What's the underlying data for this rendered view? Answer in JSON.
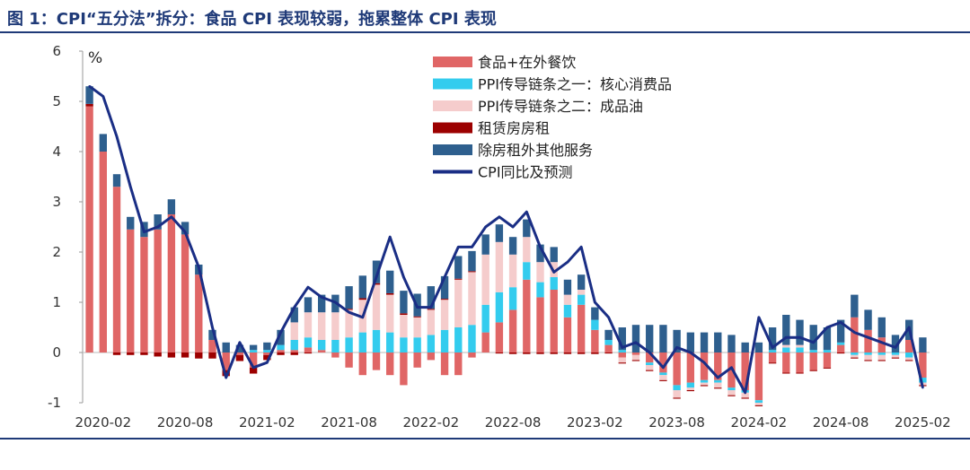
{
  "figure": {
    "title": "图 1：CPI“五分法”拆分：食品 CPI 表现较弱，拖累整体 CPI 表现"
  },
  "chart_data": {
    "type": "bar",
    "stacked": true,
    "ylabel": "%",
    "ylim": [
      -1,
      6
    ],
    "yticks": [
      -1,
      0,
      1,
      2,
      3,
      4,
      5,
      6
    ],
    "xtick_labels": [
      "2020-02",
      "2020-08",
      "2021-02",
      "2021-08",
      "2022-02",
      "2022-08",
      "2023-02",
      "2023-08",
      "2024-02",
      "2024-08",
      "2025-02"
    ],
    "categories": [
      "2020-01",
      "2020-02",
      "2020-03",
      "2020-04",
      "2020-05",
      "2020-06",
      "2020-07",
      "2020-08",
      "2020-09",
      "2020-10",
      "2020-11",
      "2020-12",
      "2021-01",
      "2021-02",
      "2021-03",
      "2021-04",
      "2021-05",
      "2021-06",
      "2021-07",
      "2021-08",
      "2021-09",
      "2021-10",
      "2021-11",
      "2021-12",
      "2022-01",
      "2022-02",
      "2022-03",
      "2022-04",
      "2022-05",
      "2022-06",
      "2022-07",
      "2022-08",
      "2022-09",
      "2022-10",
      "2022-11",
      "2022-12",
      "2023-01",
      "2023-02",
      "2023-03",
      "2023-04",
      "2023-05",
      "2023-06",
      "2023-07",
      "2023-08",
      "2023-09",
      "2023-10",
      "2023-11",
      "2023-12",
      "2024-01",
      "2024-02",
      "2024-03",
      "2024-04",
      "2024-05",
      "2024-06",
      "2024-07",
      "2024-08",
      "2024-09",
      "2024-10",
      "2024-11",
      "2024-12",
      "2025-01",
      "2025-02"
    ],
    "legend_position": "top-right",
    "series": [
      {
        "name": "食品+在外餐饮",
        "kind": "bar",
        "color": "#e06666",
        "values": [
          4.9,
          4.0,
          3.3,
          2.45,
          2.3,
          2.45,
          2.75,
          2.35,
          1.55,
          0.25,
          -0.35,
          -0.05,
          -0.3,
          -0.05,
          0.05,
          0.05,
          0.1,
          0.05,
          -0.1,
          -0.3,
          -0.45,
          -0.35,
          -0.45,
          -0.65,
          -0.3,
          -0.15,
          -0.45,
          -0.45,
          -0.1,
          0.4,
          0.6,
          0.85,
          1.45,
          1.1,
          1.25,
          0.7,
          0.95,
          0.45,
          0.15,
          -0.1,
          -0.05,
          -0.2,
          -0.4,
          -0.65,
          -0.6,
          -0.55,
          -0.55,
          -0.7,
          -0.75,
          -0.95,
          -0.2,
          -0.4,
          -0.4,
          -0.35,
          -0.3,
          0.15,
          0.7,
          0.45,
          0.3,
          0.0,
          0.25,
          -0.5
        ]
      },
      {
        "name": "PPI传导链条之一：核心消费品",
        "kind": "bar",
        "color": "#33ccee",
        "values": [
          0.0,
          0.0,
          0.0,
          0.0,
          0.0,
          0.0,
          0.0,
          0.0,
          0.0,
          0.0,
          0.0,
          0.0,
          0.05,
          0.05,
          0.1,
          0.2,
          0.2,
          0.2,
          0.25,
          0.3,
          0.4,
          0.45,
          0.4,
          0.3,
          0.3,
          0.35,
          0.45,
          0.5,
          0.55,
          0.55,
          0.6,
          0.45,
          0.35,
          0.3,
          0.25,
          0.25,
          0.2,
          0.2,
          0.1,
          0.05,
          0.0,
          -0.05,
          -0.05,
          -0.1,
          -0.1,
          -0.05,
          -0.05,
          -0.05,
          -0.05,
          -0.05,
          0.05,
          0.1,
          0.1,
          0.05,
          0.05,
          0.05,
          -0.05,
          -0.05,
          -0.05,
          -0.05,
          -0.1,
          -0.1
        ]
      },
      {
        "name": "PPI传导链条之二：成品油",
        "kind": "bar",
        "color": "#f5cccc",
        "values": [
          0.0,
          0.0,
          0.0,
          0.0,
          0.0,
          0.0,
          0.0,
          0.0,
          0.0,
          0.0,
          0.0,
          0.0,
          0.0,
          0.0,
          0.0,
          0.35,
          0.5,
          0.55,
          0.55,
          0.55,
          0.65,
          0.9,
          0.75,
          0.45,
          0.4,
          0.5,
          0.6,
          0.95,
          1.05,
          1.0,
          1.0,
          0.65,
          0.5,
          0.4,
          0.3,
          0.2,
          0.1,
          0.0,
          0.0,
          -0.1,
          -0.1,
          -0.1,
          -0.1,
          -0.15,
          -0.05,
          -0.05,
          -0.1,
          -0.1,
          -0.1,
          -0.05,
          0.0,
          0.05,
          0.05,
          0.0,
          0.0,
          0.0,
          -0.05,
          -0.1,
          -0.1,
          -0.05,
          -0.05,
          -0.05
        ]
      },
      {
        "name": "租赁房房租",
        "kind": "bar",
        "color": "#9c0000",
        "values": [
          0.05,
          0.0,
          -0.05,
          -0.05,
          -0.05,
          -0.08,
          -0.1,
          -0.1,
          -0.12,
          -0.12,
          -0.12,
          -0.12,
          -0.12,
          -0.1,
          -0.05,
          -0.05,
          -0.02,
          0.0,
          0.0,
          0.02,
          0.03,
          0.03,
          0.03,
          0.03,
          0.02,
          0.02,
          0.02,
          0.02,
          0.02,
          0.0,
          -0.02,
          -0.03,
          -0.03,
          -0.03,
          -0.03,
          -0.03,
          -0.03,
          -0.03,
          -0.02,
          -0.02,
          -0.02,
          -0.02,
          -0.02,
          -0.02,
          -0.02,
          -0.02,
          -0.02,
          -0.02,
          -0.02,
          -0.02,
          -0.02,
          -0.02,
          -0.02,
          -0.02,
          -0.02,
          -0.02,
          -0.02,
          -0.02,
          -0.02,
          -0.02,
          -0.02,
          -0.02
        ]
      },
      {
        "name": "除房租外其他服务",
        "kind": "bar",
        "color": "#2e5f8e",
        "values": [
          0.35,
          0.35,
          0.25,
          0.25,
          0.3,
          0.3,
          0.3,
          0.25,
          0.2,
          0.2,
          0.2,
          0.15,
          0.1,
          0.15,
          0.3,
          0.3,
          0.3,
          0.35,
          0.35,
          0.45,
          0.45,
          0.45,
          0.45,
          0.45,
          0.45,
          0.45,
          0.45,
          0.45,
          0.4,
          0.4,
          0.35,
          0.35,
          0.35,
          0.35,
          0.3,
          0.3,
          0.3,
          0.25,
          0.2,
          0.45,
          0.55,
          0.55,
          0.55,
          0.45,
          0.4,
          0.4,
          0.4,
          0.35,
          0.2,
          0.2,
          0.45,
          0.6,
          0.5,
          0.5,
          0.45,
          0.45,
          0.45,
          0.4,
          0.4,
          0.35,
          0.4,
          0.3
        ]
      },
      {
        "name": "CPI同比及预测",
        "kind": "line",
        "color": "#1a2e85",
        "values": [
          5.3,
          5.1,
          4.3,
          3.3,
          2.4,
          2.5,
          2.7,
          2.4,
          1.7,
          0.5,
          -0.5,
          0.2,
          -0.3,
          -0.2,
          0.4,
          0.9,
          1.3,
          1.1,
          1.0,
          0.8,
          0.7,
          1.5,
          2.3,
          1.5,
          0.9,
          0.9,
          1.5,
          2.1,
          2.1,
          2.5,
          2.7,
          2.5,
          2.8,
          2.1,
          1.6,
          1.8,
          2.1,
          1.0,
          0.7,
          0.1,
          0.2,
          0.0,
          -0.3,
          0.1,
          0.0,
          -0.2,
          -0.5,
          -0.3,
          -0.8,
          0.7,
          0.1,
          0.3,
          0.3,
          0.2,
          0.5,
          0.6,
          0.4,
          0.3,
          0.2,
          0.1,
          0.5,
          -0.7
        ]
      }
    ]
  }
}
